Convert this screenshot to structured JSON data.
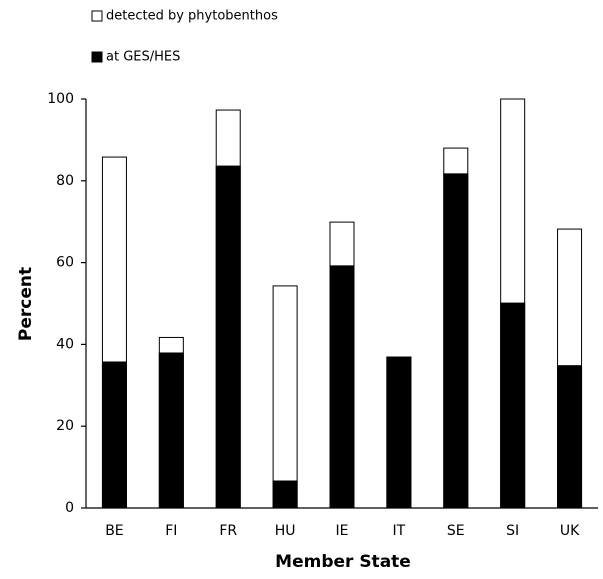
{
  "chart_data": {
    "type": "bar",
    "overlap": true,
    "x_label": "Member State",
    "y_label": "Percent",
    "categories": [
      "BE",
      "FI",
      "FR",
      "HU",
      "IE",
      "IT",
      "SE",
      "SI",
      "UK"
    ],
    "series": [
      {
        "name": "detected by phytobenthos",
        "color": "#ffffff",
        "values": [
          85.8,
          41.7,
          97.3,
          54.3,
          69.9,
          36.9,
          88.0,
          100,
          68.2
        ]
      },
      {
        "name": "at GES/HES",
        "color": "#000000",
        "values": [
          35.7,
          37.9,
          83.6,
          6.6,
          59.2,
          36.9,
          81.7,
          50.1,
          34.8
        ]
      }
    ],
    "ylim": [
      0,
      100
    ],
    "yticks": [
      0,
      20,
      40,
      60,
      80,
      100
    ],
    "grid": false
  }
}
